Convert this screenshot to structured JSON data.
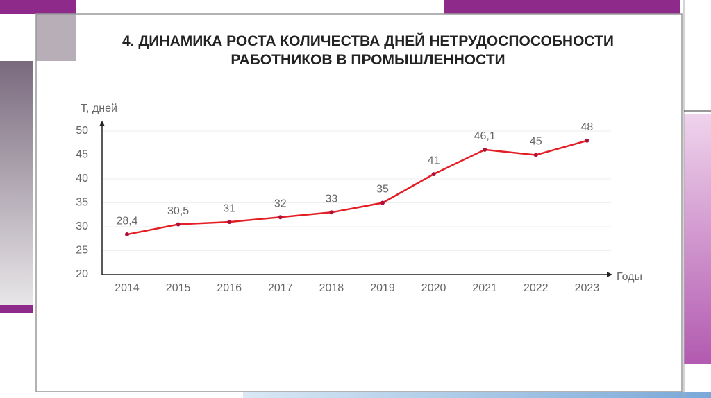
{
  "chart_data": {
    "type": "line",
    "title": "4. ДИНАМИКА РОСТА КОЛИЧЕСТВА ДНЕЙ НЕТРУДОСПОСОБНОСТИ РАБОТНИКОВ В ПРОМЫШЛЕННОСТИ",
    "y_label": "Т, дней",
    "x_label": "Годы",
    "categories": [
      "2014",
      "2015",
      "2016",
      "2017",
      "2018",
      "2019",
      "2020",
      "2021",
      "2022",
      "2023"
    ],
    "series": [
      {
        "color": "#e31e24",
        "values": [
          28.4,
          30.5,
          31,
          32,
          33,
          35,
          41,
          46.1,
          45,
          48
        ],
        "value_labels": [
          "28,4",
          "30,5",
          "31",
          "32",
          "33",
          "35",
          "41",
          "46,1",
          "45",
          "48"
        ]
      }
    ],
    "ylim": [
      20,
      50
    ],
    "yticks": [
      20,
      25,
      30,
      35,
      40,
      45,
      50
    ],
    "grid": true
  }
}
